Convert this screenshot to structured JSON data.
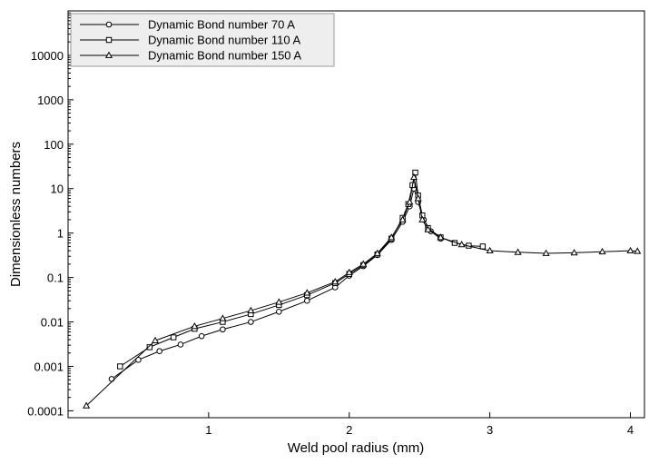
{
  "chart_data": {
    "type": "line",
    "x_label": "Weld pool radius (mm)",
    "y_label": "Dimensionless numbers",
    "log_y": true,
    "xlim": [
      0,
      4.1
    ],
    "ylim": [
      7e-05,
      100000
    ],
    "xticks": [
      1,
      2,
      3,
      4
    ],
    "yticks": [
      0.0001,
      0.001,
      0.01,
      0.1,
      1,
      10,
      100,
      1000,
      10000
    ],
    "legend": "top-left",
    "series": [
      {
        "name": "Dynamic Bond number 70 A",
        "color": "#000000",
        "marker": "circle",
        "x": [
          0.31,
          0.5,
          0.65,
          0.8,
          0.95,
          1.1,
          1.3,
          1.5,
          1.7,
          1.9,
          2.0,
          2.1,
          2.2,
          2.3,
          2.38,
          2.43,
          2.46,
          2.49,
          2.53,
          2.58,
          2.65
        ],
        "values": [
          0.00052,
          0.0014,
          0.0022,
          0.0031,
          0.0048,
          0.0068,
          0.01,
          0.017,
          0.03,
          0.06,
          0.11,
          0.18,
          0.32,
          0.7,
          1.8,
          4,
          10,
          5,
          2,
          1.1,
          0.75
        ]
      },
      {
        "name": "Dynamic Bond number 110 A",
        "color": "#000000",
        "marker": "square",
        "x": [
          0.37,
          0.58,
          0.75,
          0.9,
          1.1,
          1.3,
          1.5,
          1.7,
          1.9,
          2.0,
          2.1,
          2.2,
          2.3,
          2.38,
          2.42,
          2.45,
          2.47,
          2.49,
          2.52,
          2.56,
          2.65,
          2.75,
          2.85,
          2.95
        ],
        "values": [
          0.001,
          0.0027,
          0.0045,
          0.007,
          0.01,
          0.015,
          0.024,
          0.04,
          0.075,
          0.12,
          0.19,
          0.33,
          0.75,
          2.2,
          4.5,
          12,
          23,
          7,
          2.5,
          1.3,
          0.8,
          0.6,
          0.52,
          0.5
        ]
      },
      {
        "name": "Dynamic Bond number 150 A",
        "color": "#000000",
        "marker": "triangle",
        "x": [
          0.13,
          0.62,
          0.9,
          1.1,
          1.3,
          1.5,
          1.7,
          1.9,
          2.0,
          2.1,
          2.2,
          2.3,
          2.38,
          2.43,
          2.46,
          2.49,
          2.52,
          2.56,
          2.65,
          2.8,
          3.0,
          3.2,
          3.4,
          3.6,
          3.8,
          4.0,
          4.05
        ],
        "values": [
          0.00013,
          0.0038,
          0.008,
          0.012,
          0.018,
          0.028,
          0.045,
          0.08,
          0.13,
          0.2,
          0.35,
          0.8,
          2,
          5,
          18,
          6,
          2,
          1.2,
          0.8,
          0.55,
          0.4,
          0.37,
          0.35,
          0.36,
          0.38,
          0.4,
          0.39
        ]
      }
    ]
  }
}
